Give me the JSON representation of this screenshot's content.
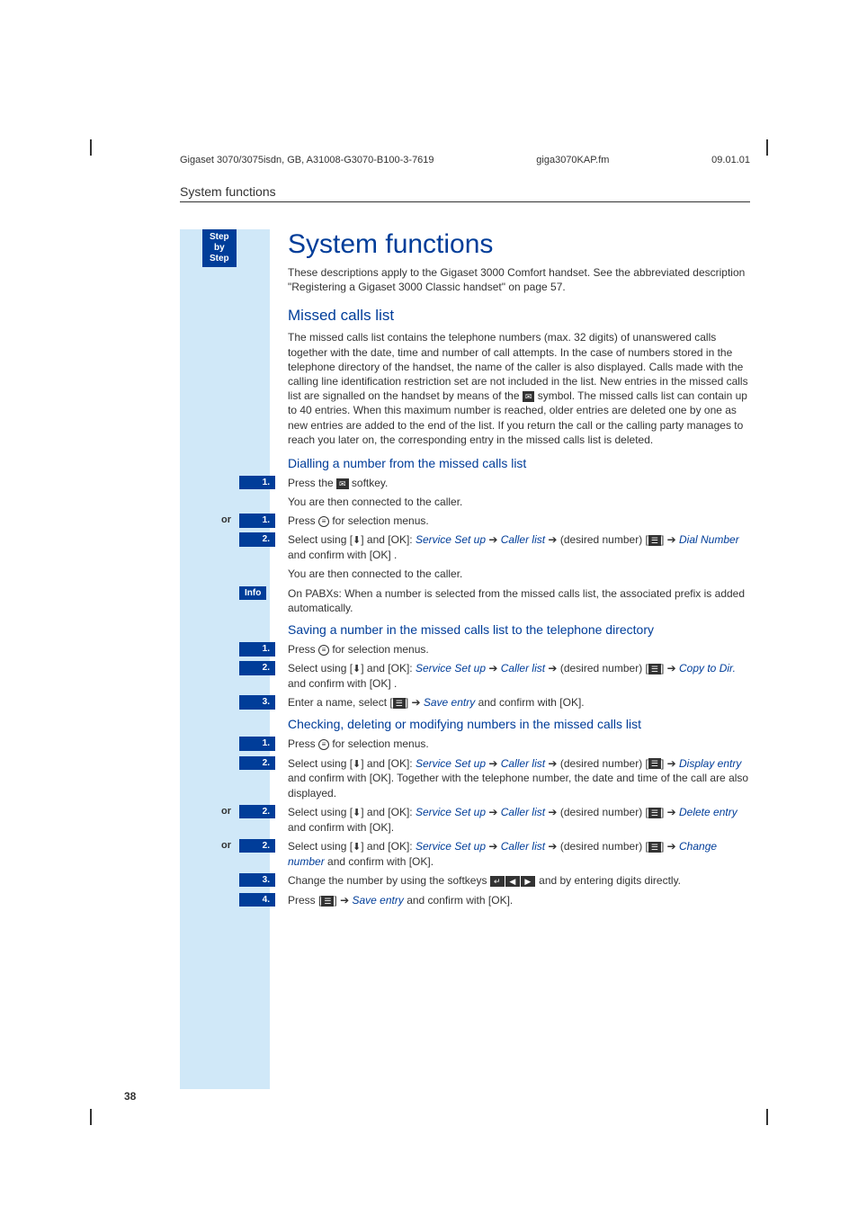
{
  "meta": {
    "docref": "Gigaset 3070/3075isdn, GB, A31008-G3070-B100-3-7619",
    "filename": "giga3070KAP.fm",
    "date": "09.01.01"
  },
  "running_header": "System functions",
  "step_badge": {
    "l1": "Step",
    "l2": "by",
    "l3": "Step"
  },
  "title": "System functions",
  "intro": "These descriptions apply to the Gigaset 3000 Comfort handset. See the abbreviated description \"Registering a Gigaset 3000 Classic handset\" on page 57.",
  "h2_missed": "Missed calls list",
  "missed_body": "The missed calls list contains the telephone numbers (max. 32 digits) of unanswered calls together with the date, time and number of call attempts. In the case of numbers stored in the telephone directory of the handset, the name of the caller is also displayed. Calls made with the calling line identification restriction set are not included in the list. New entries in the missed calls list are signalled on the handset by means of the ",
  "missed_body2": " symbol. The missed calls list can contain up to 40 entries. When this maximum number is reached, older entries are deleted one by one as new entries are added to the end of the list. If you return the call or the calling party manages to reach you later on, the corresponding entry in the missed calls list is deleted.",
  "h3_dial": "Dialling a number from the missed calls list",
  "dial": {
    "s1": "Press the ",
    "s1b": " softkey.",
    "s1c": "You are then connected to the caller.",
    "or1": "Press ",
    "or1b": " for selection menus.",
    "s2a": "Select using [",
    "s2b": "] and [OK]: ",
    "s2_svc": "Service Set up",
    "s2_arr": " ➔ ",
    "s2_cl": "Caller list",
    "s2_dn": " ➔ (desired number) [",
    "s2_end": "] ➔ ",
    "s2_dial": "Dial Number",
    "s2_conf": " and confirm with [OK] .",
    "s2c": "You are then connected to the caller.",
    "info": "On PABXs: When a number is selected from the missed calls list, the associated prefix is added automatically."
  },
  "h3_save": "Saving a number in the missed calls list to the telephone directory",
  "save": {
    "s1": "Press ",
    "s1b": " for selection menus.",
    "s2a": "Select using [",
    "s2b": "] and [OK]: ",
    "s2_svc": "Service Set up",
    "s2_cl": "Caller list",
    "s2_copy": "Copy to Dir.",
    "s2_conf": " and confirm with [OK] .",
    "s3a": "Enter a name, select [",
    "s3b": "] ➔ ",
    "s3_save": "Save entry",
    "s3_conf": " and confirm with [OK]."
  },
  "h3_check": "Checking, deleting or modifying numbers in the missed calls list",
  "check": {
    "s1": "Press ",
    "s1b": " for selection menus.",
    "s2a": "Select using [",
    "s2b": "] and [OK]: ",
    "svc": "Service Set up",
    "cl": "Caller list",
    "disp": "Display entry",
    "disp_conf": " and confirm with [OK]. Together with the telephone number, the date and time of the call are also displayed.",
    "del": "Delete entry",
    "del_conf": " and confirm with [OK].",
    "chg": "Change number",
    "chg_conf": " and confirm with [OK].",
    "s3a": "Change the number by using the softkeys ",
    "s3b": " and by entering digits directly.",
    "s4a": "Press [",
    "s4b": "] ➔ ",
    "s4_save": "Save entry",
    "s4_conf": " and confirm with [OK]."
  },
  "labels": {
    "or": "or",
    "n1": "1.",
    "n2": "2.",
    "n3": "3.",
    "n4": "4.",
    "info": "Info",
    "arrow_between": " ➔ (desired number) [",
    "arrow_end": "] ➔ "
  },
  "page_number": "38",
  "colors": {
    "blue_dark": "#003d99",
    "blue_light": "#d0e8f8",
    "text": "#333333",
    "white": "#ffffff"
  }
}
